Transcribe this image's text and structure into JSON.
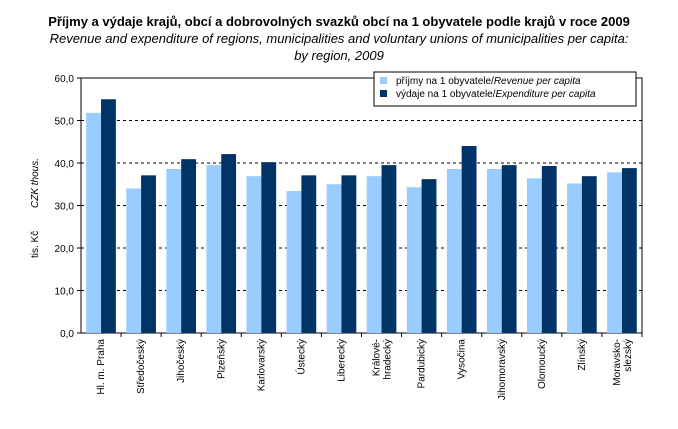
{
  "chart_data": {
    "type": "bar",
    "title": "Příjmy a výdaje krajů, obcí a dobrovolných svazků obcí na 1 obyvatele podle krajů v roce 2009",
    "subtitle": "Revenue and expenditure of regions, municipalities and voluntary unions of municipalities per capita:",
    "subtitle2": "by region, 2009",
    "ylabel": "tis. Kč",
    "ylabel_en": "CZK thous.",
    "ylim": [
      0,
      60
    ],
    "yticks": [
      "0,0",
      "10,0",
      "20,0",
      "30,0",
      "40,0",
      "50,0",
      "60,0"
    ],
    "grid": true,
    "legend_position": "top-right",
    "categories": [
      "Hl. m. Praha",
      "Středočeský",
      "Jihočeský",
      "Plzeňský",
      "Karlovarský",
      "Ústecký",
      "Liberecký",
      "Králové-hradecký",
      "Pardubický",
      "Vysočina",
      "Jihomoravský",
      "Olomoucký",
      "Zlínský",
      "Moravsko-slezský"
    ],
    "series": [
      {
        "name": "příjmy na 1 obyvatele/",
        "name_en": "Revenue per capita",
        "color": "#99ccff",
        "values": [
          51.8,
          34.0,
          38.6,
          39.5,
          36.9,
          33.4,
          35.0,
          36.9,
          34.3,
          38.6,
          38.6,
          36.4,
          35.2,
          37.8
        ]
      },
      {
        "name": "výdaje na 1 obyvatele/",
        "name_en": "Expenditure per capita",
        "color": "#003366",
        "values": [
          55.0,
          37.1,
          40.9,
          42.1,
          40.2,
          37.1,
          37.1,
          39.5,
          36.2,
          44.0,
          39.5,
          39.3,
          36.9,
          38.8
        ]
      }
    ]
  }
}
